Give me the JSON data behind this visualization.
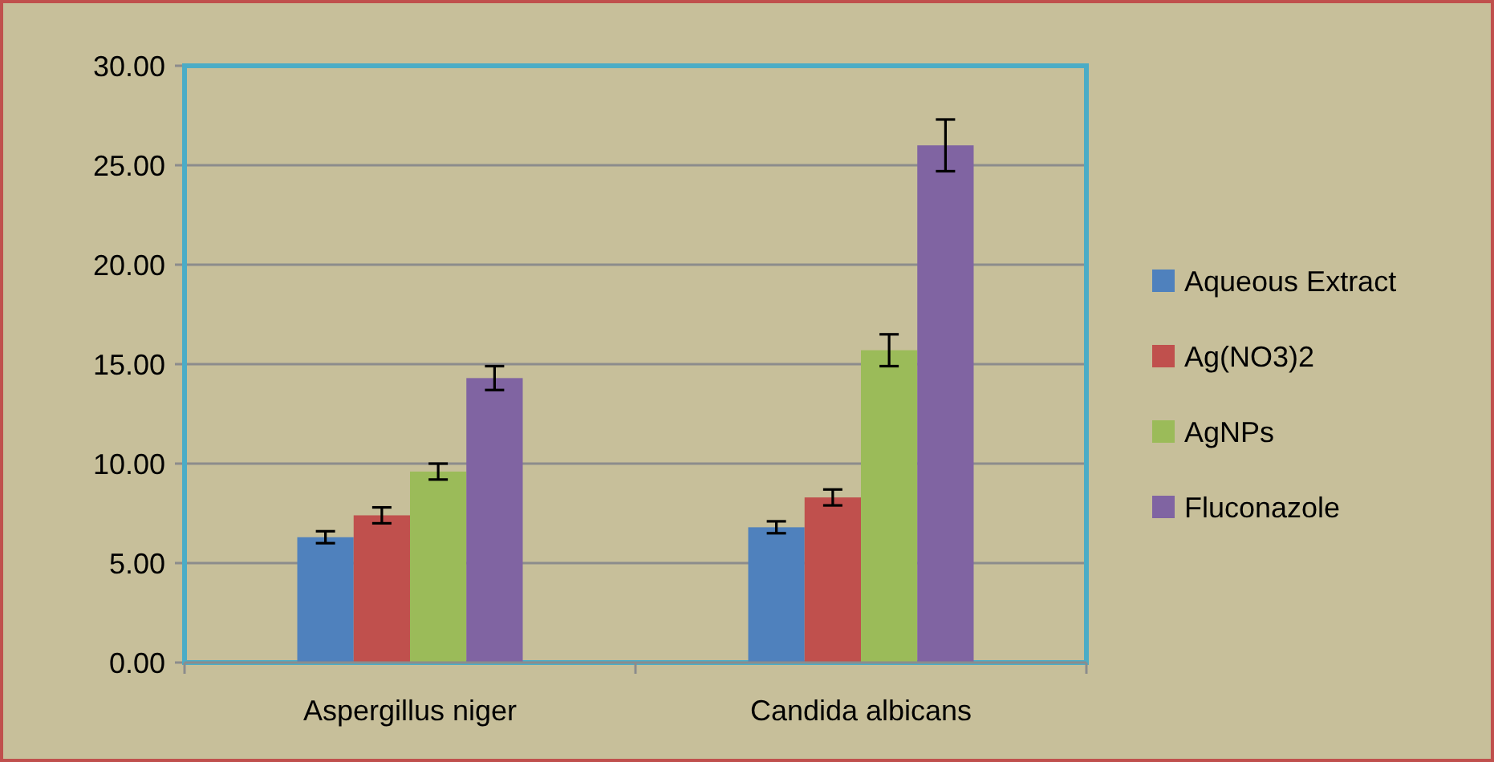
{
  "chart_data": {
    "type": "bar",
    "categories": [
      "Aspergillus niger",
      "Candida albicans"
    ],
    "series": [
      {
        "name": "Aqueous Extract",
        "color": "#4f81bd",
        "values": [
          6.3,
          6.8
        ],
        "errors": [
          0.3,
          0.3
        ]
      },
      {
        "name": "Ag(NO3)2",
        "color": "#c0504d",
        "values": [
          7.4,
          8.3
        ],
        "errors": [
          0.4,
          0.4
        ]
      },
      {
        "name": "AgNPs",
        "color": "#9bbb59",
        "values": [
          9.6,
          15.7
        ],
        "errors": [
          0.4,
          0.8
        ]
      },
      {
        "name": "Fluconazole",
        "color": "#8064a2",
        "values": [
          14.3,
          26.0
        ],
        "errors": [
          0.6,
          1.3
        ]
      }
    ],
    "ylim": [
      0,
      30
    ],
    "yticks": [
      {
        "value": 0,
        "label": "0.00"
      },
      {
        "value": 5,
        "label": "5.00"
      },
      {
        "value": 10,
        "label": "10.00"
      },
      {
        "value": 15,
        "label": "15.00"
      },
      {
        "value": 20,
        "label": "20.00"
      },
      {
        "value": 25,
        "label": "25.00"
      },
      {
        "value": 30,
        "label": "30.00"
      }
    ],
    "grid": "y",
    "legend": "right"
  }
}
